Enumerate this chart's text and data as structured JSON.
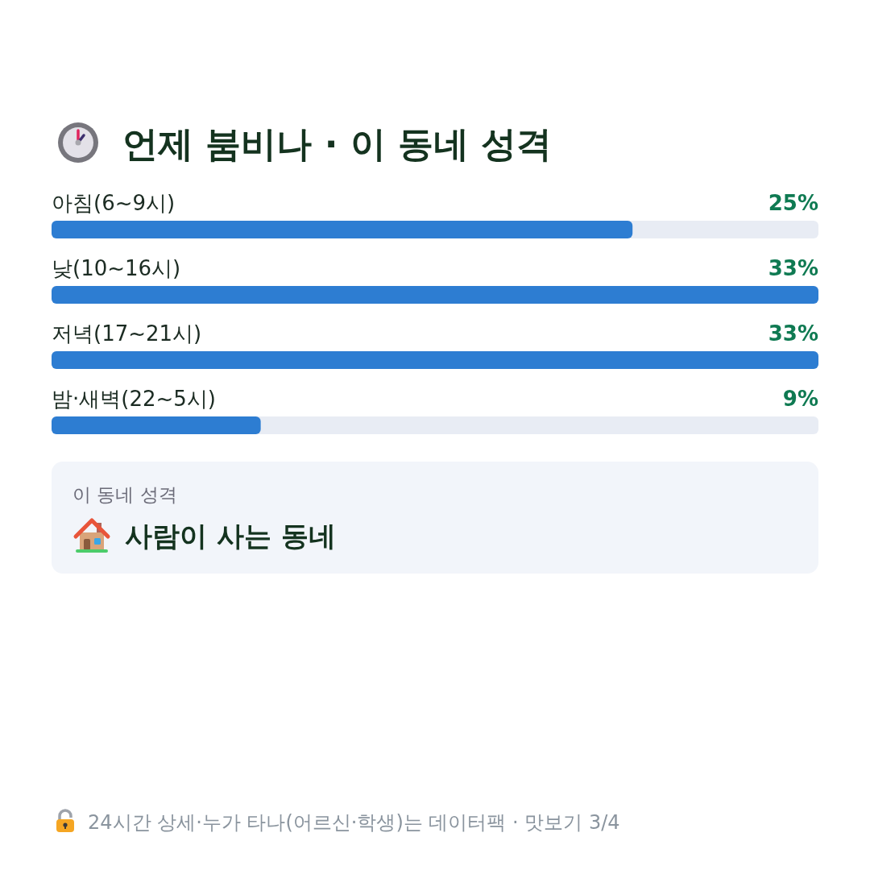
{
  "chart_data": {
    "type": "bar",
    "orientation": "horizontal",
    "title": "언제 붐비나 · 이 동네 성격",
    "categories": [
      "아침(6~9시)",
      "낮(10~16시)",
      "저녁(17~21시)",
      "밤·새벽(22~5시)"
    ],
    "values": [
      25,
      33,
      33,
      9
    ],
    "value_labels": [
      "25%",
      "33%",
      "33%",
      "9%"
    ],
    "color": "#2d7dd2",
    "annotations": [
      "이 동네 성격",
      "사람이 사는 동네",
      "24시간 상세·누가 타나(어르신·학생)는 데이터팩 · 맛보기 3/4"
    ]
  }
}
